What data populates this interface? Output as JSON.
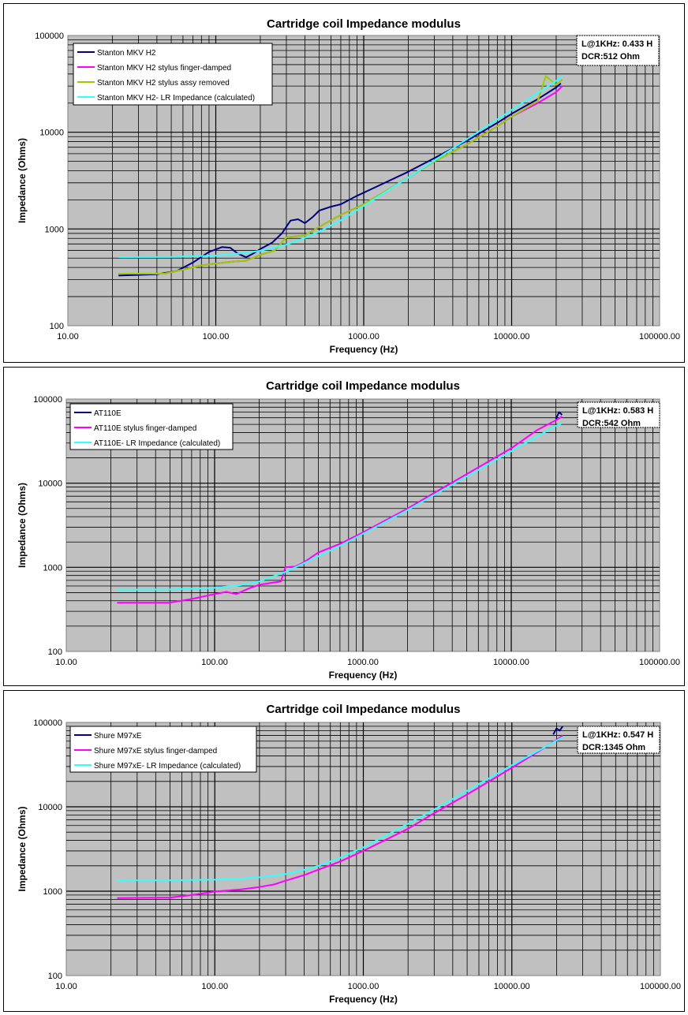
{
  "chart_data": [
    {
      "type": "line",
      "title": "Cartridge coil Impedance modulus",
      "xlabel": "Frequency (Hz)",
      "ylabel": "Impedance (Ohms)",
      "xscale": "log",
      "yscale": "log",
      "xlim": [
        10,
        100000
      ],
      "ylim": [
        100,
        100000
      ],
      "x_ticks": [
        "10.00",
        "100.00",
        "1000.00",
        "10000.00",
        "100000.00"
      ],
      "y_ticks": [
        "100",
        "1000",
        "10000",
        "100000"
      ],
      "grid": true,
      "legend_position": "top-left",
      "annotation": [
        "L@1KHz: 0.433 H",
        "DCR:512 Ohm"
      ],
      "series": [
        {
          "name": "Stanton MKV H2",
          "color": "#000080",
          "points": [
            [
              22,
              330
            ],
            [
              40,
              340
            ],
            [
              55,
              370
            ],
            [
              70,
              450
            ],
            [
              90,
              580
            ],
            [
              110,
              650
            ],
            [
              125,
              640
            ],
            [
              140,
              560
            ],
            [
              160,
              510
            ],
            [
              180,
              560
            ],
            [
              200,
              620
            ],
            [
              240,
              720
            ],
            [
              280,
              900
            ],
            [
              320,
              1220
            ],
            [
              360,
              1260
            ],
            [
              400,
              1150
            ],
            [
              450,
              1320
            ],
            [
              500,
              1550
            ],
            [
              600,
              1700
            ],
            [
              700,
              1800
            ],
            [
              900,
              2200
            ],
            [
              1200,
              2700
            ],
            [
              2000,
              3900
            ],
            [
              3000,
              5400
            ],
            [
              5000,
              8200
            ],
            [
              8000,
              12500
            ],
            [
              10000,
              15500
            ],
            [
              15000,
              22000
            ],
            [
              20000,
              29000
            ],
            [
              21500,
              32000
            ]
          ]
        },
        {
          "name": "Stanton MKV H2 stylus finger-damped",
          "color": "#ff00ff",
          "points": [
            [
              22,
              345
            ],
            [
              45,
              345
            ],
            [
              60,
              380
            ],
            [
              80,
              420
            ],
            [
              100,
              440
            ],
            [
              130,
              460
            ],
            [
              160,
              470
            ],
            [
              200,
              540
            ],
            [
              250,
              600
            ],
            [
              300,
              820
            ],
            [
              400,
              860
            ],
            [
              500,
              1050
            ],
            [
              700,
              1400
            ],
            [
              1000,
              1800
            ],
            [
              2000,
              3400
            ],
            [
              3000,
              5000
            ],
            [
              5000,
              7500
            ],
            [
              8000,
              11500
            ],
            [
              10000,
              14500
            ],
            [
              15000,
              20000
            ],
            [
              20000,
              26000
            ],
            [
              22000,
              30000
            ]
          ]
        },
        {
          "name": "Stanton MKV H2 stylus assy removed",
          "color": "#99cc00",
          "points": [
            [
              22,
              345
            ],
            [
              45,
              345
            ],
            [
              60,
              380
            ],
            [
              80,
              420
            ],
            [
              100,
              440
            ],
            [
              130,
              460
            ],
            [
              160,
              470
            ],
            [
              200,
              540
            ],
            [
              250,
              600
            ],
            [
              300,
              820
            ],
            [
              400,
              860
            ],
            [
              500,
              1050
            ],
            [
              700,
              1400
            ],
            [
              1000,
              1800
            ],
            [
              2000,
              3400
            ],
            [
              3000,
              5000
            ],
            [
              5000,
              7500
            ],
            [
              8000,
              11500
            ],
            [
              10000,
              14500
            ],
            [
              15000,
              21000
            ],
            [
              17000,
              38000
            ],
            [
              20000,
              31000
            ],
            [
              22000,
              35000
            ]
          ]
        },
        {
          "name": "Stanton MKV H2- LR Impedance (calculated)",
          "color": "#33ffff",
          "points": [
            [
              22,
              512
            ],
            [
              50,
              514
            ],
            [
              80,
              526
            ],
            [
              100,
              532
            ],
            [
              150,
              560
            ],
            [
              200,
              595
            ],
            [
              300,
              690
            ],
            [
              400,
              810
            ],
            [
              500,
              939
            ],
            [
              700,
              1230
            ],
            [
              1000,
              1734
            ],
            [
              2000,
              3400
            ],
            [
              3000,
              5100
            ],
            [
              5000,
              8500
            ],
            [
              10000,
              17000
            ],
            [
              15000,
              25500
            ],
            [
              20000,
              34000
            ],
            [
              22000,
              38000
            ]
          ]
        }
      ]
    },
    {
      "type": "line",
      "title": "Cartridge coil Impedance modulus",
      "xlabel": "Frequency (Hz)",
      "ylabel": "Impedance (Ohms)",
      "xscale": "log",
      "yscale": "log",
      "xlim": [
        10,
        100000
      ],
      "ylim": [
        100,
        100000
      ],
      "x_ticks": [
        "10.00",
        "100.00",
        "1000.00",
        "10000.00",
        "100000.00"
      ],
      "y_ticks": [
        "100",
        "1000",
        "10000",
        "100000"
      ],
      "grid": true,
      "legend_position": "top-left",
      "annotation": [
        "L@1KHz: 0.583 H",
        "DCR:542 Ohm"
      ],
      "series": [
        {
          "name": "AT110E",
          "color": "#000080",
          "points": [
            [
              20000,
              58000
            ],
            [
              21000,
              70000
            ],
            [
              22000,
              65000
            ]
          ]
        },
        {
          "name": "AT110E stylus finger-damped",
          "color": "#ff00ff",
          "points": [
            [
              22,
              380
            ],
            [
              50,
              380
            ],
            [
              70,
              420
            ],
            [
              100,
              480
            ],
            [
              120,
              510
            ],
            [
              140,
              480
            ],
            [
              170,
              560
            ],
            [
              200,
              620
            ],
            [
              250,
              660
            ],
            [
              280,
              680
            ],
            [
              300,
              1000
            ],
            [
              350,
              1020
            ],
            [
              400,
              1150
            ],
            [
              500,
              1500
            ],
            [
              700,
              1900
            ],
            [
              1000,
              2600
            ],
            [
              2000,
              5000
            ],
            [
              3000,
              7600
            ],
            [
              5000,
              12800
            ],
            [
              10000,
              26000
            ],
            [
              15000,
              43000
            ],
            [
              20000,
              56000
            ],
            [
              22000,
              62000
            ]
          ]
        },
        {
          "name": "AT110E- LR Impedance (calculated)",
          "color": "#33ffff",
          "points": [
            [
              22,
              542
            ],
            [
              50,
              546
            ],
            [
              80,
              560
            ],
            [
              100,
              570
            ],
            [
              150,
              615
            ],
            [
              200,
              680
            ],
            [
              300,
              880
            ],
            [
              400,
              1120
            ],
            [
              500,
              1350
            ],
            [
              700,
              1800
            ],
            [
              1000,
              2500
            ],
            [
              2000,
              4800
            ],
            [
              3000,
              7200
            ],
            [
              5000,
              12000
            ],
            [
              10000,
              24000
            ],
            [
              15000,
              36000
            ],
            [
              20000,
              48000
            ],
            [
              22000,
              52000
            ]
          ]
        }
      ]
    },
    {
      "type": "line",
      "title": "Cartridge coil Impedance modulus",
      "xlabel": "Frequency (Hz)",
      "ylabel": "Impedance (Ohms)",
      "xscale": "log",
      "yscale": "log",
      "xlim": [
        10,
        100000
      ],
      "ylim": [
        100,
        100000
      ],
      "x_ticks": [
        "10.00",
        "100.00",
        "1000.00",
        "10000.00",
        "100000.00"
      ],
      "y_ticks": [
        "100",
        "1000",
        "10000",
        "100000"
      ],
      "grid": true,
      "legend_position": "top-left",
      "annotation": [
        "L@1KHz: 0.547 H",
        "DCR:1345 Ohm"
      ],
      "series": [
        {
          "name": "Shure M97xE",
          "color": "#000080",
          "points": [
            [
              19000,
              72000
            ],
            [
              20000,
              85000
            ],
            [
              21000,
              80000
            ],
            [
              22000,
              90000
            ]
          ]
        },
        {
          "name": "Shure M97xE stylus finger-damped",
          "color": "#ff00ff",
          "points": [
            [
              22,
              830
            ],
            [
              50,
              840
            ],
            [
              70,
              900
            ],
            [
              100,
              990
            ],
            [
              150,
              1050
            ],
            [
              200,
              1120
            ],
            [
              250,
              1200
            ],
            [
              300,
              1330
            ],
            [
              400,
              1550
            ],
            [
              500,
              1800
            ],
            [
              700,
              2250
            ],
            [
              1000,
              3000
            ],
            [
              2000,
              5500
            ],
            [
              3000,
              8400
            ],
            [
              5000,
              14000
            ],
            [
              10000,
              29000
            ],
            [
              15000,
              45000
            ],
            [
              20000,
              62000
            ],
            [
              22000,
              70000
            ]
          ]
        },
        {
          "name": "Shure M97xE- LR Impedance (calculated)",
          "color": "#33ffff",
          "points": [
            [
              22,
              1345
            ],
            [
              50,
              1348
            ],
            [
              80,
              1362
            ],
            [
              100,
              1370
            ],
            [
              150,
              1410
            ],
            [
              200,
              1460
            ],
            [
              300,
              1600
            ],
            [
              400,
              1790
            ],
            [
              500,
              2000
            ],
            [
              700,
              2500
            ],
            [
              1000,
              3300
            ],
            [
              2000,
              6300
            ],
            [
              3000,
              9300
            ],
            [
              5000,
              15500
            ],
            [
              10000,
              31000
            ],
            [
              15000,
              46000
            ],
            [
              20000,
              61000
            ],
            [
              22000,
              67000
            ]
          ]
        }
      ]
    }
  ]
}
